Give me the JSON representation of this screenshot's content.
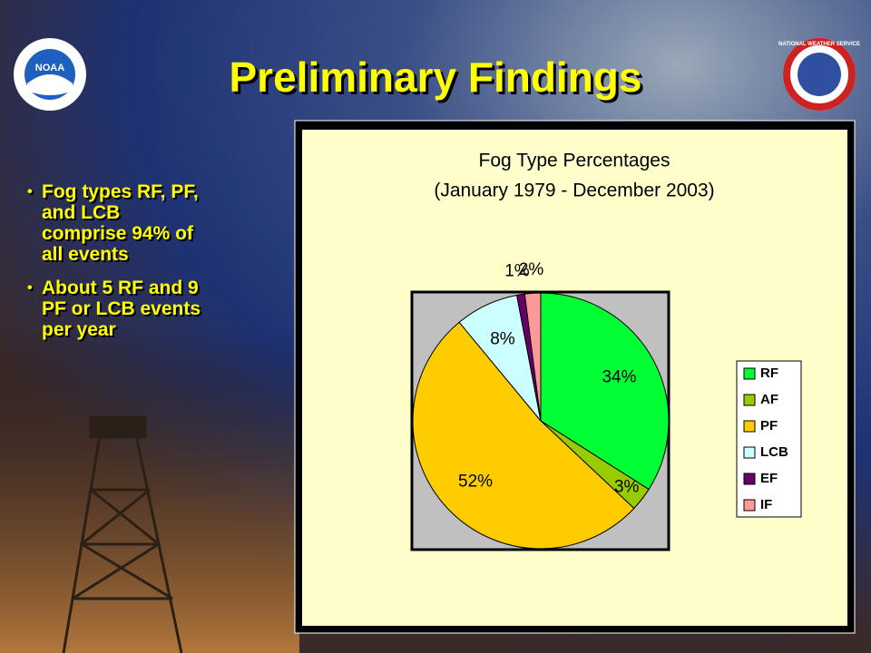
{
  "title": "Preliminary Findings",
  "bullets": [
    "Fog types RF, PF, and LCB comprise 94% of all events",
    "About 5 RF and 9 PF or LCB events per year"
  ],
  "logos": {
    "left": "NOAA",
    "right": "NATIONAL WEATHER SERVICE"
  },
  "chart_data": {
    "type": "pie",
    "title": "Fog Type Percentages",
    "subtitle": "(January 1979 - December 2003)",
    "categories": [
      "RF",
      "AF",
      "PF",
      "LCB",
      "EF",
      "IF"
    ],
    "values": [
      34,
      3,
      52,
      8,
      1,
      2
    ],
    "value_labels": [
      "34%",
      "3%",
      "52%",
      "8%",
      "1%",
      "2%"
    ],
    "colors": [
      "#00ff33",
      "#99cc00",
      "#ffcc00",
      "#ccffff",
      "#660066",
      "#ff9999"
    ],
    "legend": "right"
  }
}
